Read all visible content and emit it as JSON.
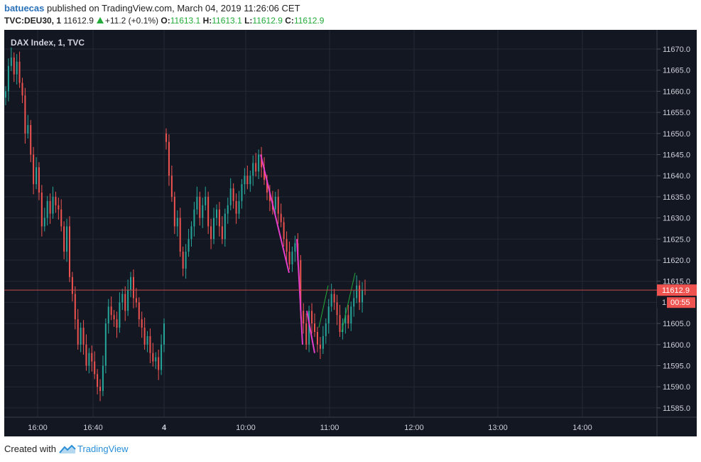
{
  "header": {
    "user": "batuecas",
    "published": "published on TradingView.com, March 04, 2019 11:26:06 CET",
    "symbol": "TVC:DEU30, 1",
    "last": "11612.9",
    "change": "+11.2 (+0.1%)",
    "o_label": "O:",
    "o_value": "11613.1",
    "h_label": "H:",
    "h_value": "11613.1",
    "l_label": "L:",
    "l_value": "11612.9",
    "c_label": "C:",
    "c_value": "11612.9"
  },
  "footer": {
    "created": "Created with",
    "brand": "TradingView",
    "icon": "tradingview-logo-icon"
  },
  "colors": {
    "background": "#131722",
    "grid": "#242836",
    "up": "#26a69a",
    "down": "#ef5350",
    "magenta": "#e43ec9",
    "green_line": "#22ab3a",
    "price_line": "#c44a4a",
    "badge": "#ef5350"
  },
  "chart_data": {
    "type": "candlestick",
    "title": "DAX Index, 1, TVC",
    "ylim": [
      11581,
      11674
    ],
    "y_ticks": [
      11585,
      11590,
      11595,
      11600,
      11605,
      11610,
      11615,
      11620,
      11625,
      11630,
      11635,
      11640,
      11645,
      11650,
      11655,
      11660,
      11665,
      11670
    ],
    "x_ticks": [
      "16:00",
      "16:40",
      "4",
      "10:00",
      "11:00",
      "12:00",
      "13:00",
      "14:00"
    ],
    "current_price": 11612.9,
    "price_label": "11612.9",
    "countdown": "00:55",
    "grid": true,
    "series": [
      {
        "segment": 1,
        "close": [
          11660,
          11666,
          11668,
          11664,
          11667,
          11662,
          11659,
          11650,
          11652,
          11645,
          11638,
          11642,
          11636,
          11628,
          11630,
          11634,
          11631,
          11635,
          11633,
          11632,
          11628,
          11622,
          11628,
          11616,
          11612,
          11606,
          11600,
          11604,
          11600,
          11595,
          11598,
          11596,
          11593,
          11590,
          11589,
          11595,
          11605,
          11609,
          11607,
          11606,
          11604,
          11610,
          11612,
          11608,
          11613,
          11616,
          11611,
          11610,
          11606,
          11604,
          11600,
          11602,
          11598,
          11596,
          11597,
          11594,
          11600,
          11605
        ]
      },
      {
        "segment": 2,
        "close": [
          11648,
          11640,
          11635,
          11628,
          11630,
          11622,
          11618,
          11622,
          11625,
          11628,
          11632,
          11635,
          11630,
          11633,
          11635,
          11628,
          11625,
          11630,
          11632,
          11628,
          11625,
          11631,
          11633,
          11637,
          11634,
          11631,
          11634,
          11638,
          11640,
          11638,
          11640,
          11643,
          11641,
          11645,
          11642,
          11639,
          11636,
          11634,
          11632,
          11635,
          11631,
          11629,
          11625,
          11622,
          11619,
          11622,
          11624,
          11620,
          11608,
          11605,
          11600,
          11608,
          11605,
          11603,
          11600,
          11599,
          11602,
          11605,
          11609,
          11612,
          11610,
          11607,
          11603,
          11605,
          11607,
          11605,
          11609,
          11611,
          11614,
          11610,
          11613,
          11612.9
        ]
      }
    ],
    "annotations": [
      {
        "type": "trend-line",
        "color": "magenta",
        "from": [
          11645,
          2
        ],
        "to": [
          11617,
          2
        ]
      },
      {
        "type": "trend-line",
        "color": "magenta",
        "from": [
          11625,
          2
        ],
        "to": [
          11600,
          2
        ]
      },
      {
        "type": "trend-line",
        "color": "magenta",
        "from": [
          11608,
          2
        ],
        "to": [
          11598,
          2
        ]
      },
      {
        "type": "trend-line",
        "color": "green",
        "from": [
          11604,
          2
        ],
        "to": [
          11614,
          2
        ]
      },
      {
        "type": "trend-line",
        "color": "green",
        "from": [
          11603,
          2
        ],
        "to": [
          11617,
          2
        ]
      }
    ]
  }
}
